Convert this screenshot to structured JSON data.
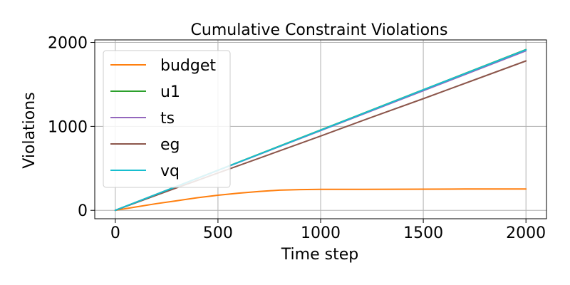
{
  "chart_data": {
    "type": "line",
    "title": "Cumulative Constraint Violations",
    "xlabel": "Time step",
    "ylabel": "Violations",
    "xlim": [
      -100,
      2100
    ],
    "ylim": [
      -100,
      2030
    ],
    "xticks": [
      0,
      500,
      1000,
      1500,
      2000
    ],
    "yticks": [
      0,
      1000,
      2000
    ],
    "grid": true,
    "legend_position": "upper-left",
    "series": [
      {
        "name": "budget",
        "color": "#ff7f0e",
        "x": [
          0,
          100,
          200,
          300,
          400,
          500,
          600,
          700,
          800,
          900,
          1000,
          1200,
          1500,
          1700,
          2000
        ],
        "y": [
          0,
          40,
          80,
          115,
          150,
          180,
          205,
          225,
          240,
          247,
          250,
          250,
          252,
          254,
          255
        ]
      },
      {
        "name": "u1",
        "color": "#2ca02c",
        "x": [
          0,
          500,
          1000,
          1500,
          2000
        ],
        "y": [
          0,
          478,
          957,
          1437,
          1915
        ]
      },
      {
        "name": "ts",
        "color": "#9467bd",
        "x": [
          0,
          500,
          1000,
          1500,
          2000
        ],
        "y": [
          0,
          475,
          950,
          1425,
          1900
        ]
      },
      {
        "name": "eg",
        "color": "#8c564b",
        "x": [
          0,
          250,
          500,
          750,
          1000,
          1250,
          1500,
          1750,
          2000
        ],
        "y": [
          0,
          225,
          445,
          665,
          885,
          1110,
          1330,
          1555,
          1780
        ]
      },
      {
        "name": "vq",
        "color": "#17becf",
        "x": [
          0,
          500,
          1000,
          1500,
          2000
        ],
        "y": [
          0,
          477,
          955,
          1435,
          1912
        ]
      }
    ]
  }
}
